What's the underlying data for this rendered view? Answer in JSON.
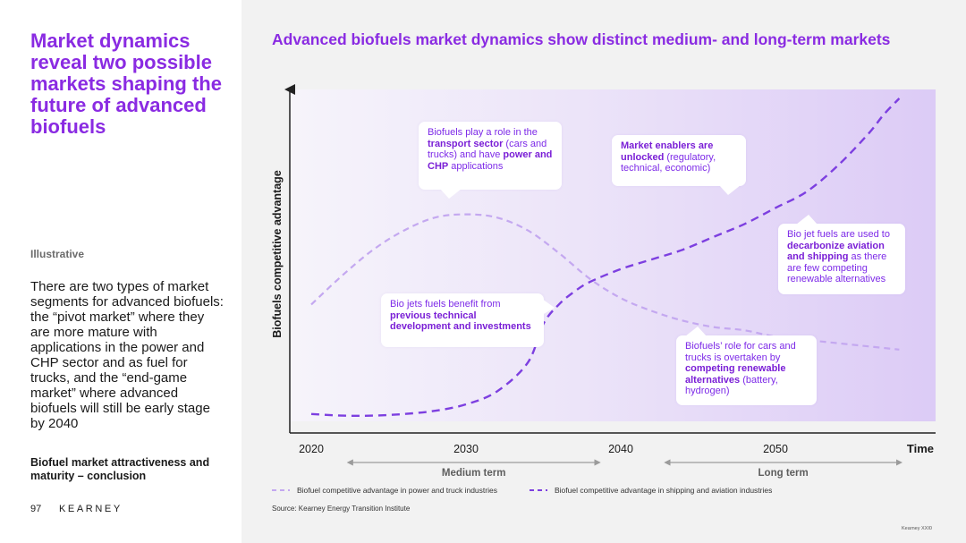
{
  "left": {
    "headline": "Market dynamics reveal two possible markets shaping the future of advanced biofuels",
    "tag": "Illustrative",
    "body": "There are two types of market segments for advanced biofuels: the “pivot market” where they are more mature with applications in the power and CHP sector and as fuel for trucks, and the “end-game market” where advanced biofuels will still be early stage by 2040",
    "conclusion": "Biofuel market attractiveness and maturity – conclusion",
    "page_number": "97",
    "brand": "KEARNEY"
  },
  "right": {
    "title": "Advanced biofuels market dynamics show distinct medium- and long-term markets",
    "source": "Source: Kearney Energy Transition Institute",
    "corner_note": "Kearney XXI0",
    "callouts": [
      {
        "parts": [
          {
            "t": "Biofuels play a role in the ",
            "b": false
          },
          {
            "t": "transport sector",
            "b": true
          },
          {
            "t": " (cars and trucks) and have ",
            "b": false
          },
          {
            "t": "power and CHP",
            "b": true
          },
          {
            "t": " applications",
            "b": false
          }
        ]
      },
      {
        "parts": [
          {
            "t": "Market enablers are unlocked",
            "b": true
          },
          {
            "t": " (regulatory, technical, economic)",
            "b": false
          }
        ]
      },
      {
        "parts": [
          {
            "t": "Bio jet fuels are used to ",
            "b": false
          },
          {
            "t": "decarbonize aviation and shipping",
            "b": true
          },
          {
            "t": " as there are few competing renewable alternatives",
            "b": false
          }
        ]
      },
      {
        "parts": [
          {
            "t": "Bio jets fuels benefit from ",
            "b": false
          },
          {
            "t": "previous technical development and investments",
            "b": true
          }
        ]
      },
      {
        "parts": [
          {
            "t": "Biofuels’ role for cars and trucks is overtaken by ",
            "b": false
          },
          {
            "t": "competing renewable alternatives",
            "b": true
          },
          {
            "t": " (battery, hydrogen)",
            "b": false
          }
        ]
      }
    ]
  },
  "chart_data": {
    "type": "line",
    "title": "Advanced biofuels market dynamics show distinct medium- and long-term markets",
    "xlabel": "Time",
    "ylabel": "Biofuels competitive advantage",
    "x_ticks": [
      "2020",
      "2030",
      "2040",
      "2050"
    ],
    "xlim": [
      2020,
      2060
    ],
    "ylim": [
      0,
      100
    ],
    "grid": false,
    "legend_position": "bottom",
    "periods": [
      {
        "label": "Medium term",
        "from": 2022.5,
        "to": 2038.5
      },
      {
        "label": "Long term",
        "from": 2043,
        "to": 2058
      }
    ],
    "series": [
      {
        "name": "Biofuel competitive advantage in power and truck industries",
        "style": "dashed-light",
        "color": "#c4a8f0",
        "x": [
          2020,
          2022,
          2024,
          2026,
          2028,
          2030,
          2032,
          2034,
          2036,
          2038,
          2040,
          2042,
          2044,
          2046,
          2048,
          2050,
          2052,
          2054,
          2056,
          2058
        ],
        "y": [
          36,
          45,
          53,
          59,
          63,
          64,
          63,
          59,
          52,
          44,
          38,
          34,
          31,
          29,
          28,
          26,
          25,
          24,
          23,
          22
        ]
      },
      {
        "name": "Biofuel competitive advantage in shipping and aviation industries",
        "style": "dashed-dark",
        "color": "#7d3fe0",
        "x": [
          2020,
          2022,
          2024,
          2026,
          2028,
          2030,
          2032,
          2034,
          2035,
          2036,
          2037,
          2038,
          2040,
          2042,
          2044,
          2046,
          2048,
          2050,
          2052,
          2054,
          2056,
          2057,
          2058
        ],
        "y": [
          2,
          1.5,
          1.5,
          2,
          3,
          5,
          9,
          18,
          30,
          36,
          40,
          43,
          47,
          50,
          53,
          57,
          61,
          66,
          71,
          79,
          89,
          95,
          100
        ]
      }
    ]
  }
}
